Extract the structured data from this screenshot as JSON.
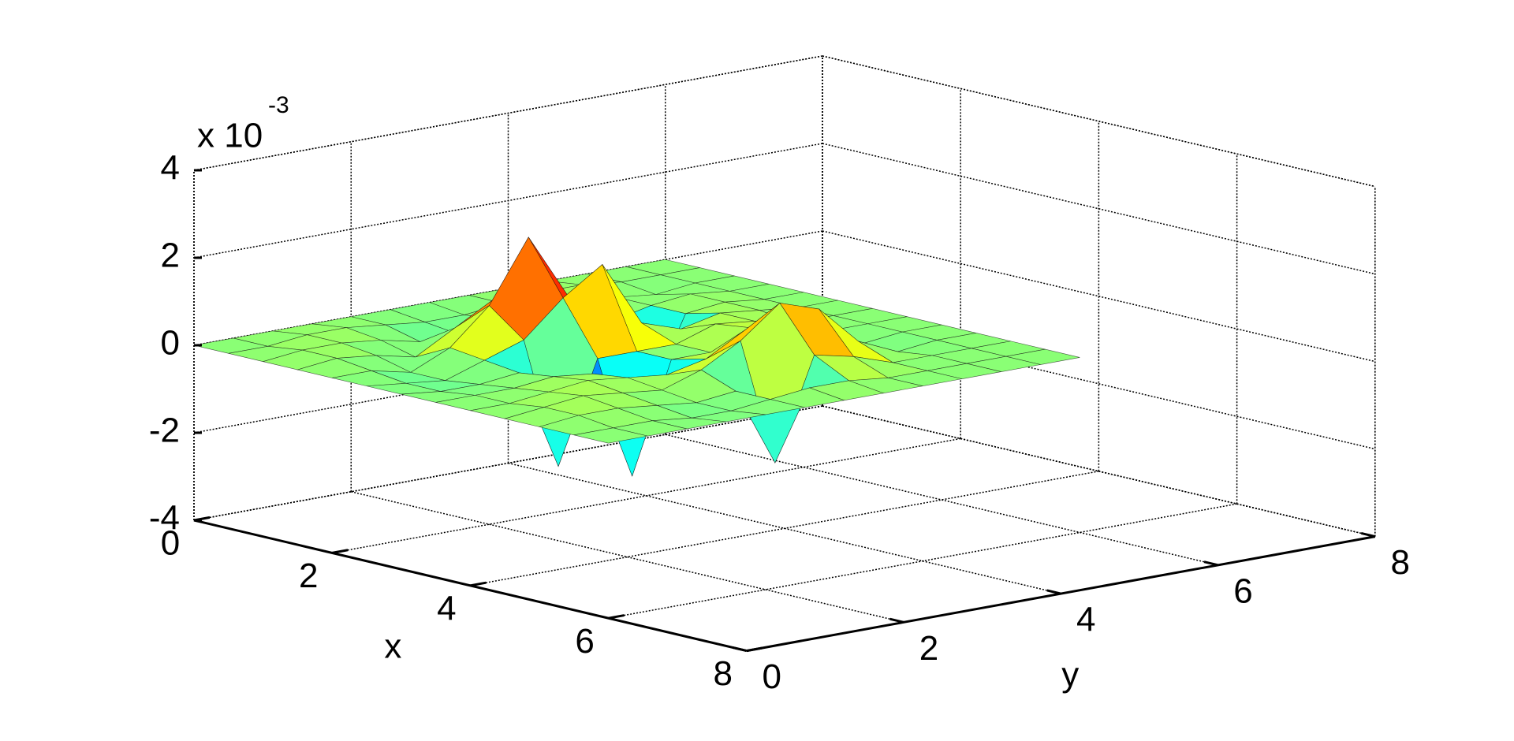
{
  "chart_data": {
    "type": "surface",
    "colormap": "jet",
    "grid": true,
    "xlabel": "x",
    "ylabel": "y",
    "z_exponent": {
      "base": "x 10",
      "power": "-3"
    },
    "xlim": [
      0,
      8
    ],
    "ylim": [
      0,
      8
    ],
    "zlim": [
      -4,
      4
    ],
    "xticks": [
      0,
      2,
      4,
      6,
      8
    ],
    "yticks": [
      0,
      2,
      4,
      6,
      8
    ],
    "zticks": [
      -4,
      -2,
      0,
      2,
      4
    ],
    "x": [
      0,
      0.5,
      1,
      1.5,
      2,
      2.5,
      3,
      3.5,
      4,
      4.5,
      5,
      5.5,
      6
    ],
    "y": [
      0,
      0.5,
      1,
      1.5,
      2,
      2.5,
      3,
      3.5,
      4,
      4.5,
      5,
      5.5,
      6
    ],
    "z": [
      [
        0,
        0,
        0,
        0,
        0,
        0,
        0,
        0,
        0,
        0,
        0,
        0,
        0
      ],
      [
        0,
        0,
        0.1,
        0.1,
        0,
        -0.1,
        -0.1,
        0,
        0.1,
        0.1,
        0,
        0,
        0
      ],
      [
        0,
        0.1,
        0.1,
        0,
        -0.2,
        -0.2,
        0,
        0.2,
        0.2,
        0,
        -0.1,
        0,
        0
      ],
      [
        0,
        0.1,
        0,
        -0.2,
        0.3,
        0.8,
        0.4,
        0,
        -0.2,
        0,
        0.1,
        0,
        0
      ],
      [
        0,
        0,
        -0.2,
        0.2,
        1.0,
        2.4,
        0.9,
        0.2,
        -1.9,
        0,
        0.1,
        0,
        0
      ],
      [
        0,
        -0.1,
        -0.2,
        0.1,
        0.4,
        1.2,
        1.8,
        0.3,
        0,
        0.2,
        0.1,
        0,
        0
      ],
      [
        0,
        -0.1,
        -0.1,
        0,
        -2.3,
        0,
        0,
        0,
        0.3,
        0.2,
        0,
        0,
        0
      ],
      [
        0,
        0,
        0,
        0.1,
        0,
        -2.5,
        0,
        0,
        0.4,
        0.1,
        0,
        0,
        0
      ],
      [
        0,
        0,
        0.1,
        0.2,
        0.1,
        0,
        0.2,
        0.7,
        0.6,
        0,
        -0.1,
        0,
        0
      ],
      [
        0,
        0.1,
        0.2,
        0.1,
        0,
        0.3,
        0.8,
        1.5,
        1.2,
        0.3,
        -0.1,
        0,
        0
      ],
      [
        0,
        0.1,
        0.1,
        0,
        -0.1,
        0,
        -1.8,
        0.5,
        0.3,
        0,
        0,
        0,
        0
      ],
      [
        0,
        0,
        0,
        -0.1,
        -0.1,
        0,
        0.1,
        0.1,
        0,
        0,
        0,
        0,
        0
      ],
      [
        0,
        0,
        0,
        0,
        0,
        0,
        0,
        0,
        0,
        0,
        0,
        0,
        0
      ]
    ]
  }
}
